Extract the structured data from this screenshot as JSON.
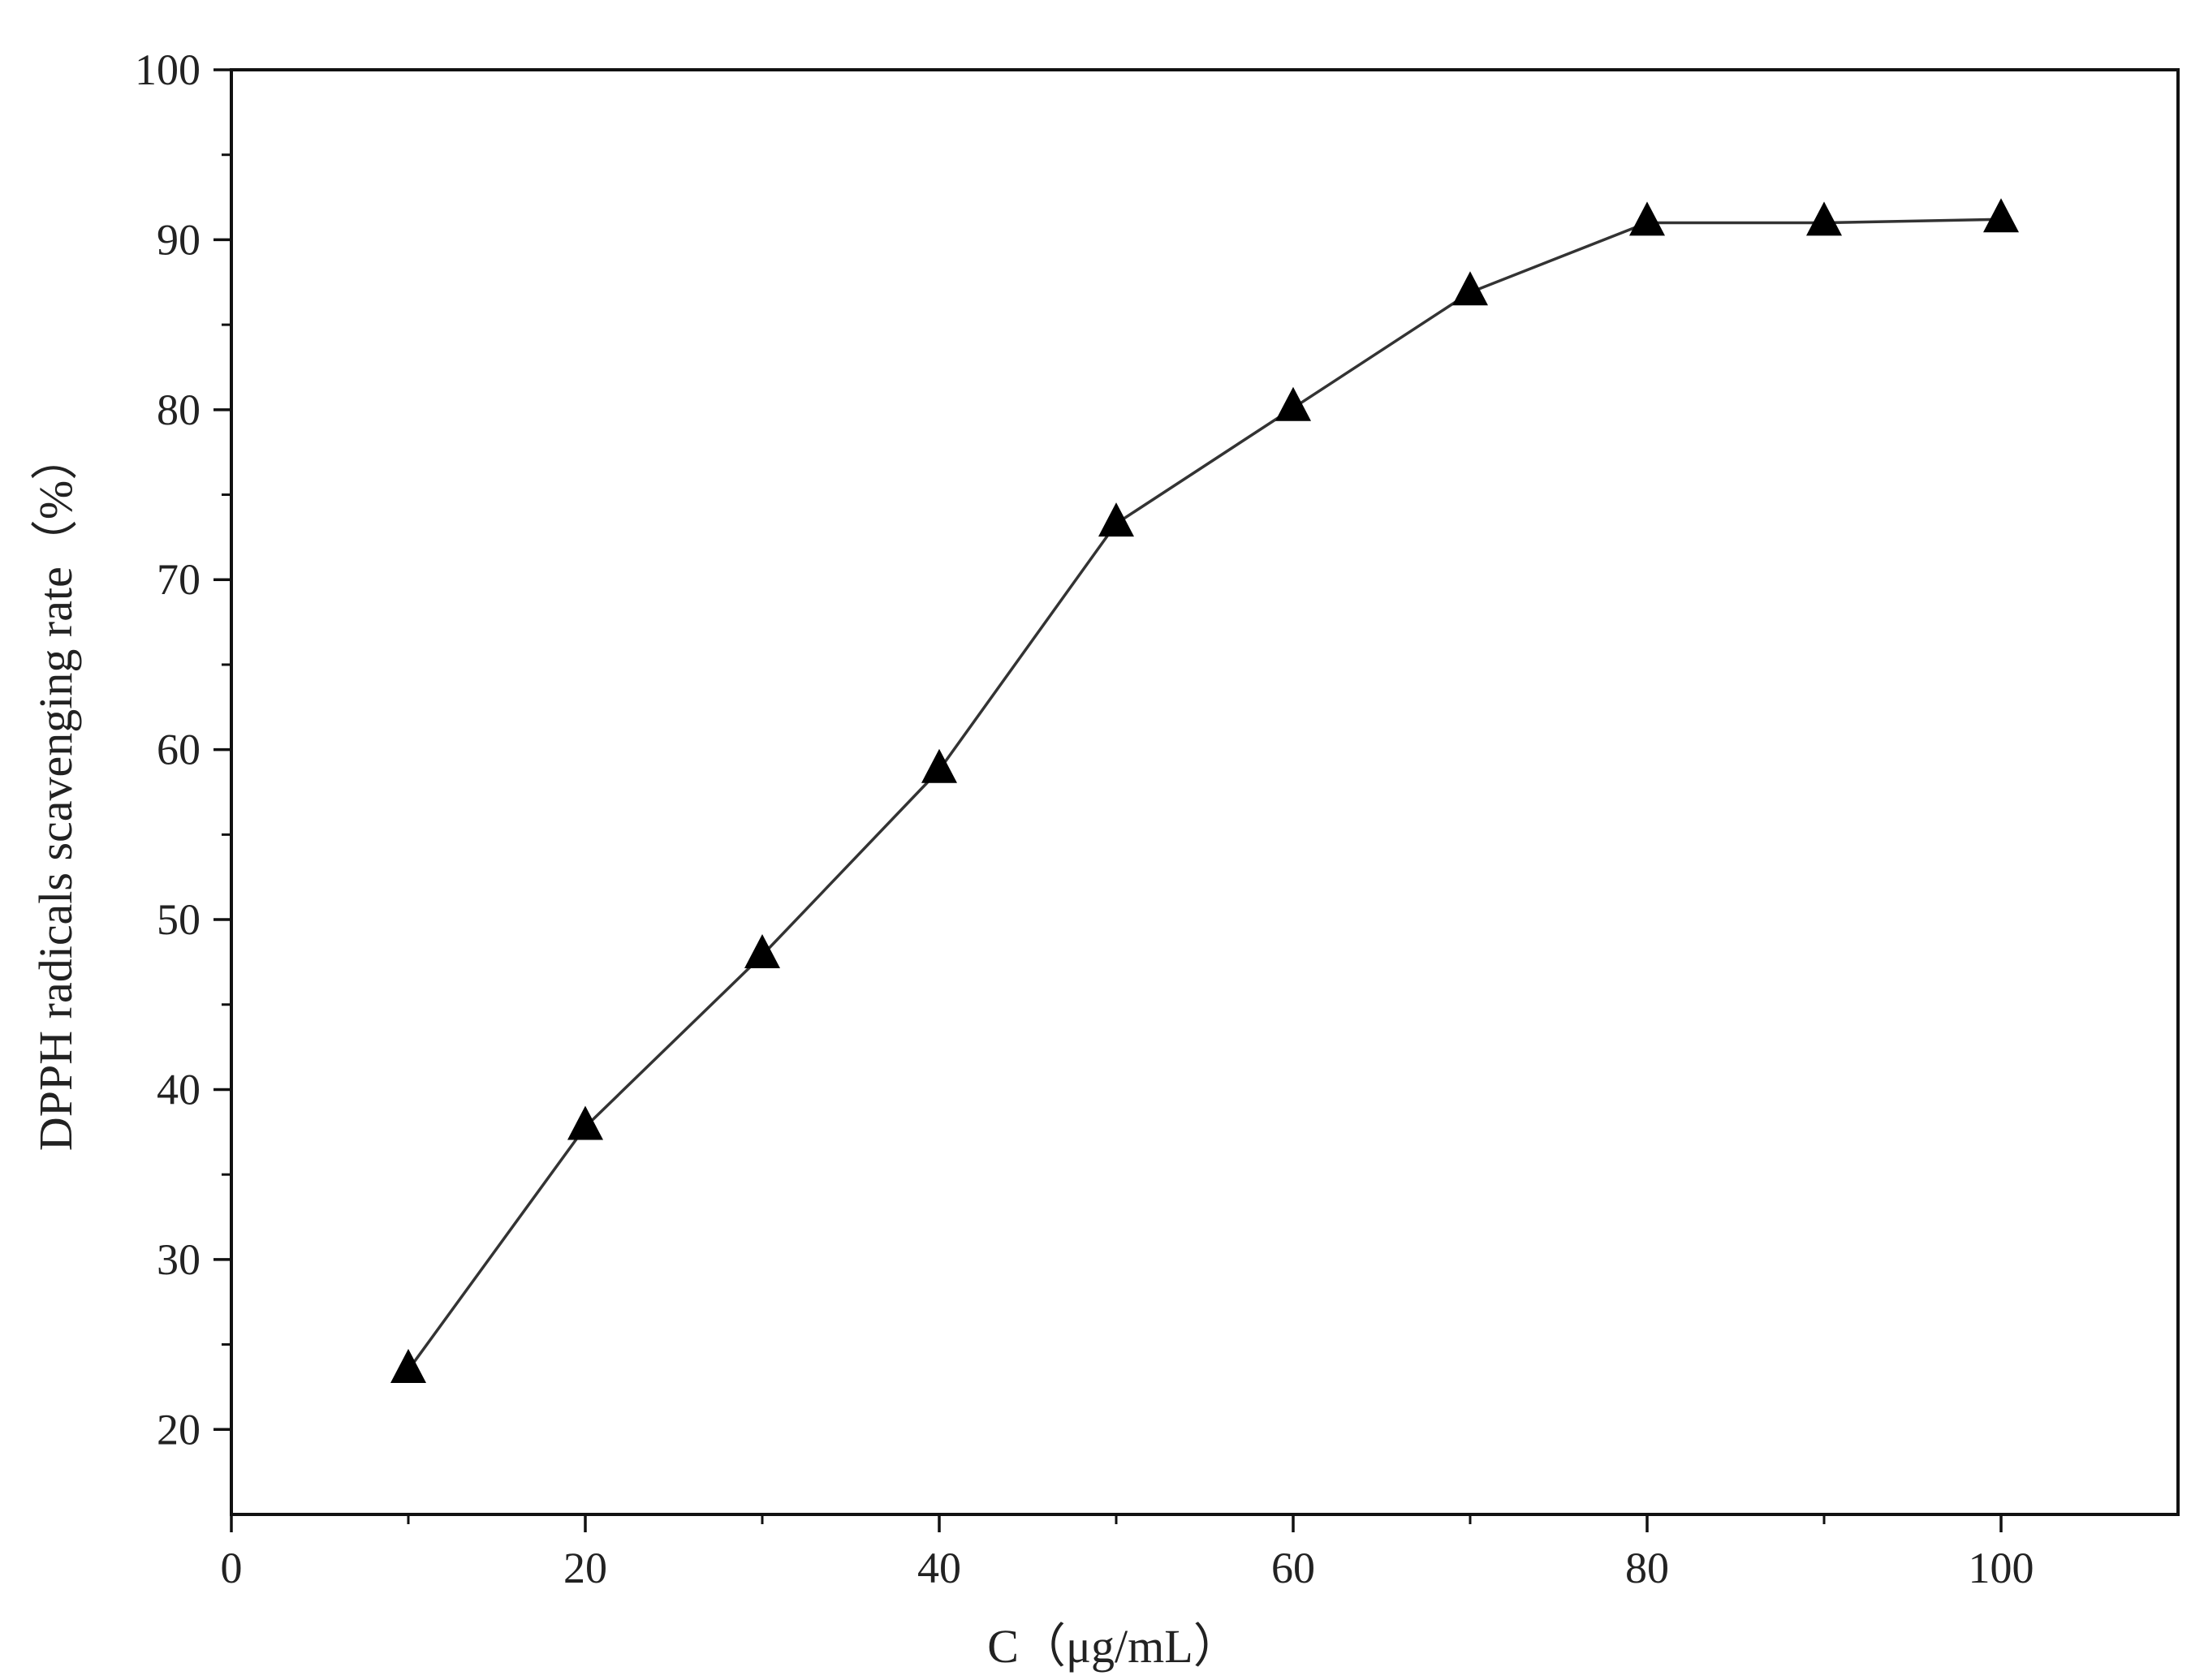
{
  "chart_data": {
    "type": "line",
    "title": "",
    "xlabel": "C（μg/mL）",
    "ylabel": "DPPH radicals scavenging rate（%）",
    "xlim": [
      0,
      110
    ],
    "ylim": [
      15,
      100
    ],
    "x_ticks": [
      0,
      20,
      40,
      60,
      80,
      100
    ],
    "y_ticks": [
      20,
      30,
      40,
      50,
      60,
      70,
      80,
      90,
      100
    ],
    "x_minor_step": 10,
    "y_minor_step": 5,
    "grid": false,
    "marker": "triangle",
    "colors": {
      "line": "#333333",
      "marker": "#000000",
      "axis": "#111111"
    },
    "series": [
      {
        "x": [
          10,
          20,
          30,
          40,
          50,
          60,
          70,
          80,
          90,
          100
        ],
        "values": [
          23.5,
          37.8,
          47.9,
          58.8,
          73.3,
          80.1,
          86.9,
          91.0,
          91.0,
          91.2
        ]
      }
    ]
  }
}
